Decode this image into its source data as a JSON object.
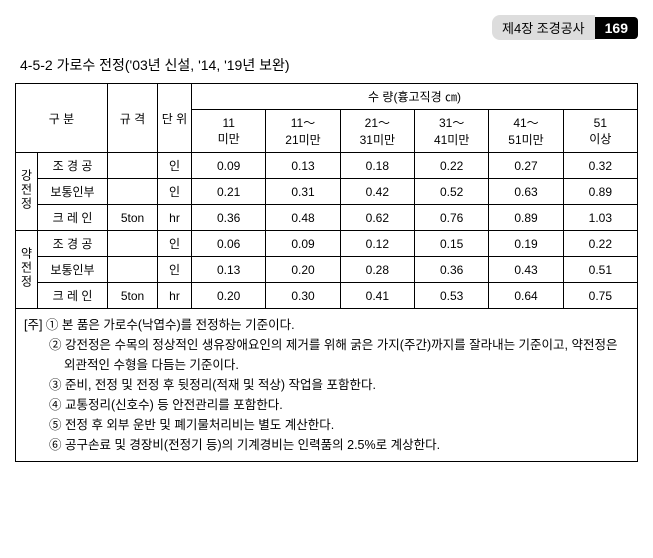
{
  "header": {
    "chapter": "제4장 조경공사",
    "page_number": "169"
  },
  "section_title": "4-5-2 가로수 전정('03년 신설, '14, '19년 보완)",
  "table": {
    "columns": {
      "group": "구 분",
      "spec": "규 격",
      "unit": "단 위",
      "quantity_header": "수 량(흉고직경 ㎝)",
      "ranges": [
        "11\n미만",
        "11～\n21미만",
        "21～\n31미만",
        "31～\n41미만",
        "41～\n51미만",
        "51\n이상"
      ]
    },
    "groups": [
      {
        "name": "강전정",
        "rows": [
          {
            "label": "조 경 공",
            "spec": "",
            "unit": "인",
            "values": [
              "0.09",
              "0.13",
              "0.18",
              "0.22",
              "0.27",
              "0.32"
            ]
          },
          {
            "label": "보통인부",
            "spec": "",
            "unit": "인",
            "values": [
              "0.21",
              "0.31",
              "0.42",
              "0.52",
              "0.63",
              "0.89"
            ]
          },
          {
            "label": "크 레 인",
            "spec": "5ton",
            "unit": "hr",
            "values": [
              "0.36",
              "0.48",
              "0.62",
              "0.76",
              "0.89",
              "1.03"
            ]
          }
        ]
      },
      {
        "name": "약전정",
        "rows": [
          {
            "label": "조 경 공",
            "spec": "",
            "unit": "인",
            "values": [
              "0.06",
              "0.09",
              "0.12",
              "0.15",
              "0.19",
              "0.22"
            ]
          },
          {
            "label": "보통인부",
            "spec": "",
            "unit": "인",
            "values": [
              "0.13",
              "0.20",
              "0.28",
              "0.36",
              "0.43",
              "0.51"
            ]
          },
          {
            "label": "크 레 인",
            "spec": "5ton",
            "unit": "hr",
            "values": [
              "0.20",
              "0.30",
              "0.41",
              "0.53",
              "0.64",
              "0.75"
            ]
          }
        ]
      }
    ]
  },
  "notes": {
    "prefix": "[주]",
    "items": [
      "① 본 품은 가로수(낙엽수)를 전정하는 기준이다.",
      "② 강전정은 수목의 정상적인 생유장애요인의 제거를 위해 굵은 가지(주간)까지를 잘라내는 기준이고, 약전정은 외관적인 수형을 다듬는 기준이다.",
      "③ 준비, 전정 및 전정 후 뒷정리(적재 및 적상) 작업을 포함한다.",
      "④ 교통정리(신호수) 등 안전관리를 포함한다.",
      "⑤ 전정 후 외부 운반 및 폐기물처리비는 별도 계산한다.",
      "⑥ 공구손료 및 경장비(전정기 등)의 기계경비는 인력품의 2.5%로 계상한다."
    ]
  }
}
